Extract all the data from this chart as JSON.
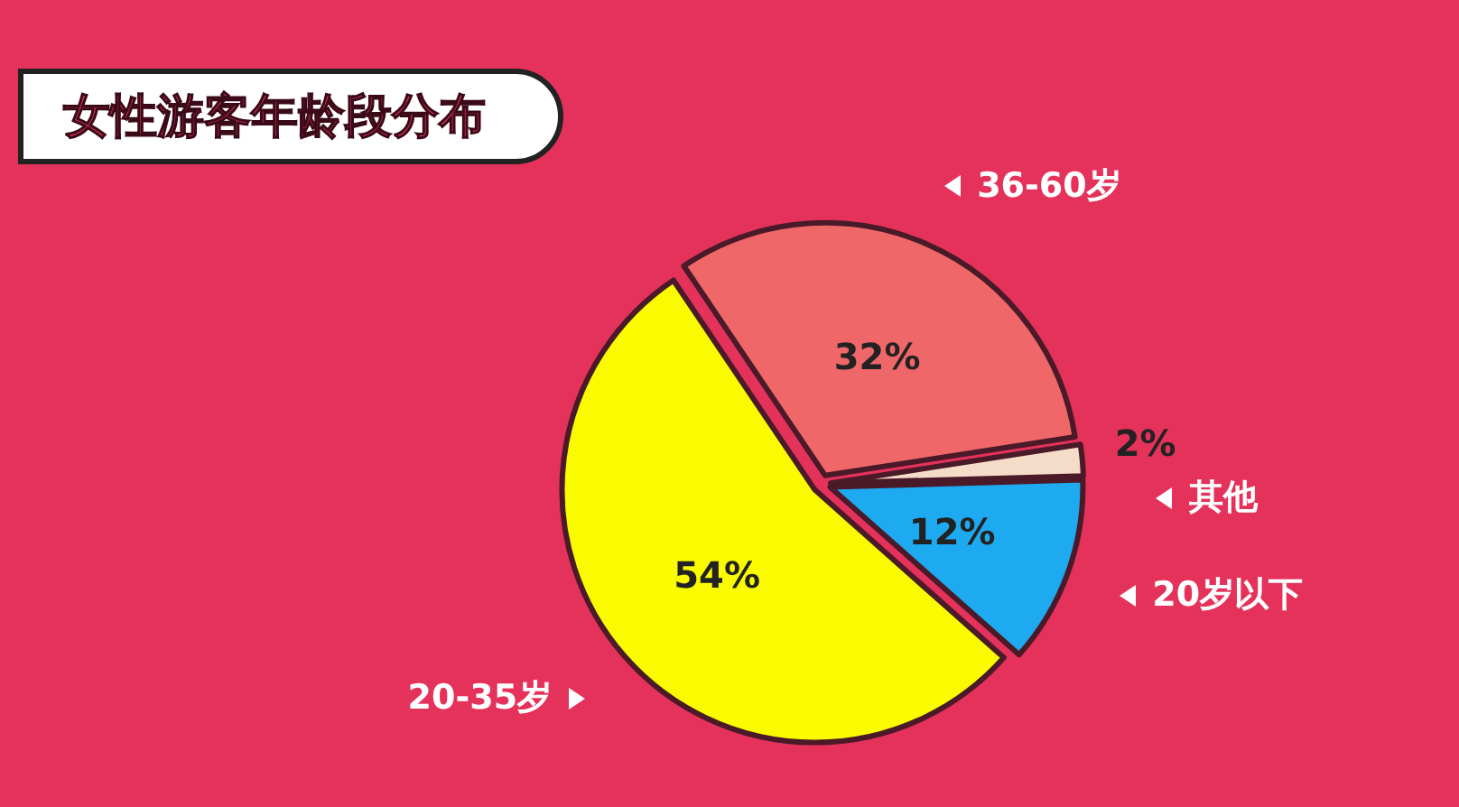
{
  "chart_data": {
    "type": "pie",
    "title": "女性游客年龄段分布",
    "categories": [
      "36-60岁",
      "其他",
      "20岁以下",
      "20-35岁"
    ],
    "values": [
      32,
      2,
      12,
      54
    ],
    "value_labels": [
      "32%",
      "2%",
      "12%",
      "54%"
    ],
    "colors": [
      "#f0676a",
      "#f5dcc8",
      "#1eaaf1",
      "#fafa00"
    ]
  }
}
